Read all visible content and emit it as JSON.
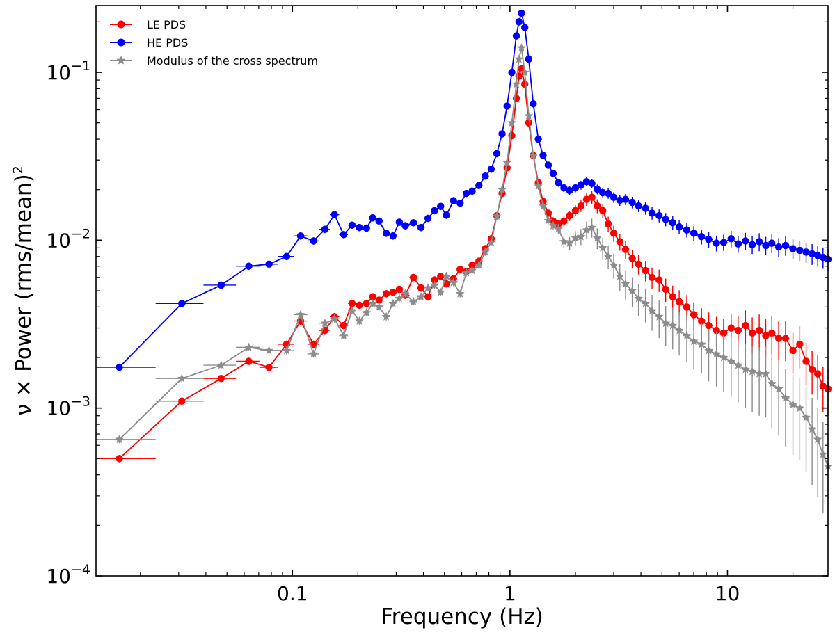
{
  "chart_data": {
    "type": "line",
    "xscale": "log",
    "yscale": "log",
    "xlabel": "Frequency (Hz)",
    "ylabel": "ν × Power (rms/mean)²",
    "ylabel_base": "ν × Power (rms/mean)",
    "ylabel_sup": "2",
    "xlim": [
      0.0125,
      29
    ],
    "ylim": [
      0.0001,
      0.25
    ],
    "x_ticks": [
      {
        "value": 0.1,
        "label": "0.1"
      },
      {
        "value": 1,
        "label": "1"
      },
      {
        "value": 10,
        "label": "10"
      }
    ],
    "y_ticks": [
      {
        "value": 0.0001,
        "base": "10",
        "exp": "−4"
      },
      {
        "value": 0.001,
        "base": "10",
        "exp": "−3"
      },
      {
        "value": 0.01,
        "base": "10",
        "exp": "−2"
      },
      {
        "value": 0.1,
        "base": "10",
        "exp": "−1"
      }
    ],
    "legend_position": "top-left",
    "series": [
      {
        "name": "LE PDS",
        "color": "#ff0000",
        "marker": "circle",
        "x": [
          0.016,
          0.031,
          0.047,
          0.063,
          0.078,
          0.094,
          0.109,
          0.125,
          0.141,
          0.156,
          0.172,
          0.188,
          0.203,
          0.219,
          0.234,
          0.25,
          0.27,
          0.29,
          0.31,
          0.33,
          0.36,
          0.39,
          0.42,
          0.45,
          0.48,
          0.51,
          0.55,
          0.59,
          0.63,
          0.67,
          0.72,
          0.77,
          0.82,
          0.87,
          0.92,
          0.97,
          1.02,
          1.07,
          1.1,
          1.13,
          1.17,
          1.22,
          1.28,
          1.35,
          1.42,
          1.5,
          1.58,
          1.67,
          1.77,
          1.88,
          2.0,
          2.12,
          2.25,
          2.38,
          2.52,
          2.67,
          2.83,
          3.0,
          3.2,
          3.4,
          3.65,
          3.9,
          4.2,
          4.5,
          4.85,
          5.2,
          5.6,
          6.0,
          6.5,
          7.0,
          7.6,
          8.2,
          8.9,
          9.6,
          10.4,
          11.2,
          12.1,
          13.0,
          14.0,
          15.0,
          16.0,
          17.2,
          18.5,
          20.0,
          21.5,
          23.0,
          24.5,
          26.0,
          27.5,
          29.0
        ],
        "y": [
          0.0005,
          0.0011,
          0.0015,
          0.0019,
          0.00175,
          0.0024,
          0.0033,
          0.0024,
          0.0029,
          0.0035,
          0.0031,
          0.0042,
          0.0041,
          0.0042,
          0.0046,
          0.0044,
          0.0048,
          0.0049,
          0.0051,
          0.0047,
          0.006,
          0.0052,
          0.0046,
          0.0058,
          0.0061,
          0.0055,
          0.0059,
          0.0067,
          0.0065,
          0.0071,
          0.0075,
          0.0089,
          0.0102,
          0.014,
          0.019,
          0.027,
          0.042,
          0.07,
          0.095,
          0.105,
          0.085,
          0.05,
          0.032,
          0.022,
          0.017,
          0.0145,
          0.013,
          0.0125,
          0.013,
          0.014,
          0.015,
          0.016,
          0.0175,
          0.018,
          0.016,
          0.015,
          0.0125,
          0.011,
          0.0098,
          0.0088,
          0.0078,
          0.0072,
          0.0066,
          0.006,
          0.0058,
          0.0051,
          0.0046,
          0.0043,
          0.004,
          0.0036,
          0.0033,
          0.0031,
          0.0029,
          0.0028,
          0.003,
          0.0029,
          0.0031,
          0.0028,
          0.0029,
          0.0027,
          0.0028,
          0.0026,
          0.0026,
          0.0022,
          0.0024,
          0.0019,
          0.0017,
          0.0016,
          0.00135,
          0.0013
        ]
      },
      {
        "name": "HE PDS",
        "color": "#0000ff",
        "marker": "circle",
        "x": [
          0.016,
          0.031,
          0.047,
          0.063,
          0.078,
          0.094,
          0.109,
          0.125,
          0.141,
          0.156,
          0.172,
          0.188,
          0.203,
          0.219,
          0.234,
          0.25,
          0.27,
          0.29,
          0.31,
          0.33,
          0.36,
          0.39,
          0.42,
          0.45,
          0.48,
          0.51,
          0.55,
          0.59,
          0.63,
          0.67,
          0.72,
          0.77,
          0.82,
          0.87,
          0.92,
          0.97,
          1.02,
          1.07,
          1.1,
          1.13,
          1.17,
          1.22,
          1.28,
          1.35,
          1.42,
          1.5,
          1.58,
          1.67,
          1.77,
          1.88,
          2.0,
          2.12,
          2.25,
          2.38,
          2.52,
          2.67,
          2.83,
          3.0,
          3.2,
          3.4,
          3.65,
          3.9,
          4.2,
          4.5,
          4.85,
          5.2,
          5.6,
          6.0,
          6.5,
          7.0,
          7.6,
          8.2,
          8.9,
          9.6,
          10.4,
          11.2,
          12.1,
          13.0,
          14.0,
          15.0,
          16.0,
          17.2,
          18.5,
          20.0,
          21.5,
          23.0,
          24.5,
          26.0,
          27.5,
          29.0
        ],
        "y": [
          0.00175,
          0.0042,
          0.0054,
          0.007,
          0.0072,
          0.008,
          0.0106,
          0.0099,
          0.0116,
          0.0142,
          0.0108,
          0.0123,
          0.0119,
          0.0118,
          0.0136,
          0.013,
          0.011,
          0.0106,
          0.0128,
          0.0122,
          0.0127,
          0.0119,
          0.0135,
          0.015,
          0.0159,
          0.0141,
          0.0172,
          0.0166,
          0.019,
          0.0196,
          0.0212,
          0.0241,
          0.0265,
          0.0328,
          0.043,
          0.063,
          0.1,
          0.165,
          0.2,
          0.225,
          0.185,
          0.12,
          0.065,
          0.04,
          0.032,
          0.028,
          0.025,
          0.022,
          0.0205,
          0.0198,
          0.0205,
          0.0213,
          0.0223,
          0.0218,
          0.0201,
          0.0192,
          0.019,
          0.018,
          0.0173,
          0.0175,
          0.0168,
          0.016,
          0.0155,
          0.0145,
          0.014,
          0.0133,
          0.0127,
          0.012,
          0.0115,
          0.011,
          0.0105,
          0.0101,
          0.0096,
          0.0097,
          0.0102,
          0.0095,
          0.0099,
          0.0094,
          0.0098,
          0.0093,
          0.0096,
          0.0091,
          0.0093,
          0.0089,
          0.0087,
          0.0085,
          0.0083,
          0.0081,
          0.0079,
          0.0077
        ]
      },
      {
        "name": "Modulus of the cross spectrum",
        "color": "#8c8c8c",
        "marker": "star",
        "x": [
          0.016,
          0.031,
          0.047,
          0.063,
          0.078,
          0.094,
          0.109,
          0.125,
          0.141,
          0.156,
          0.172,
          0.188,
          0.203,
          0.219,
          0.234,
          0.25,
          0.27,
          0.29,
          0.31,
          0.33,
          0.36,
          0.39,
          0.42,
          0.45,
          0.48,
          0.51,
          0.55,
          0.59,
          0.63,
          0.67,
          0.72,
          0.77,
          0.82,
          0.87,
          0.92,
          0.97,
          1.02,
          1.07,
          1.1,
          1.13,
          1.17,
          1.22,
          1.28,
          1.35,
          1.42,
          1.5,
          1.58,
          1.67,
          1.77,
          1.88,
          2.0,
          2.12,
          2.25,
          2.38,
          2.52,
          2.67,
          2.83,
          3.0,
          3.2,
          3.4,
          3.65,
          3.9,
          4.2,
          4.5,
          4.85,
          5.2,
          5.6,
          6.0,
          6.5,
          7.0,
          7.6,
          8.2,
          8.9,
          9.6,
          10.4,
          11.2,
          12.1,
          13.0,
          14.0,
          15.0,
          16.0,
          17.2,
          18.5,
          20.0,
          21.5,
          23.0,
          24.5,
          26.0,
          27.5,
          29.0
        ],
        "y": [
          0.00065,
          0.0015,
          0.0018,
          0.0023,
          0.0022,
          0.0022,
          0.0036,
          0.0021,
          0.0032,
          0.0034,
          0.0027,
          0.0038,
          0.0033,
          0.0037,
          0.0042,
          0.004,
          0.0035,
          0.0042,
          0.0045,
          0.0048,
          0.0043,
          0.0046,
          0.0052,
          0.0054,
          0.0049,
          0.0061,
          0.0056,
          0.0048,
          0.0064,
          0.0066,
          0.0071,
          0.0085,
          0.0097,
          0.0139,
          0.02,
          0.029,
          0.05,
          0.085,
          0.12,
          0.14,
          0.1,
          0.055,
          0.032,
          0.021,
          0.016,
          0.0131,
          0.0122,
          0.0117,
          0.0098,
          0.0096,
          0.0103,
          0.0105,
          0.0115,
          0.0119,
          0.0103,
          0.009,
          0.008,
          0.0071,
          0.0061,
          0.0055,
          0.005,
          0.0045,
          0.0042,
          0.0038,
          0.0035,
          0.0032,
          0.0031,
          0.0029,
          0.0027,
          0.0025,
          0.0024,
          0.0022,
          0.0021,
          0.002,
          0.0019,
          0.0018,
          0.0017,
          0.00165,
          0.0016,
          0.0016,
          0.0014,
          0.0013,
          0.00115,
          0.00105,
          0.001,
          0.00088,
          0.00075,
          0.00065,
          0.00053,
          0.00045
        ]
      }
    ]
  }
}
